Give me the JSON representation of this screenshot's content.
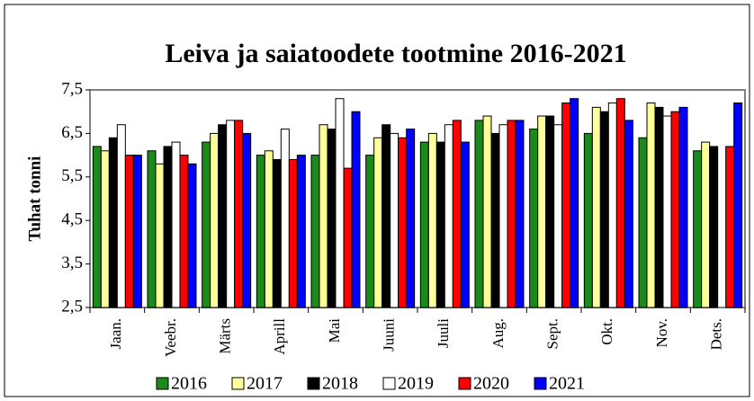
{
  "chart_data": {
    "type": "bar",
    "title": "Leiva ja saiatoodete tootmine 2016-2021",
    "y_label": "Tuhat tonni",
    "categories": [
      "Jaan.",
      "Veebr.",
      "Märts",
      "Aprill",
      "Mai",
      "Juuni",
      "Juuli",
      "Aug.",
      "Sept.",
      "Okt.",
      "Nov.",
      "Dets."
    ],
    "series": [
      {
        "name": "2016",
        "color": "#1a8a1a",
        "values": [
          6.2,
          6.1,
          6.3,
          6.0,
          6.0,
          6.0,
          6.3,
          6.8,
          6.6,
          6.5,
          6.4,
          6.1
        ]
      },
      {
        "name": "2017",
        "color": "#ffff99",
        "values": [
          6.1,
          5.8,
          6.5,
          6.1,
          6.7,
          6.4,
          6.5,
          6.9,
          6.9,
          7.1,
          7.2,
          6.3
        ]
      },
      {
        "name": "2018",
        "color": "#000000",
        "values": [
          6.4,
          6.2,
          6.7,
          5.9,
          6.6,
          6.7,
          6.3,
          6.5,
          6.9,
          7.0,
          7.1,
          6.2
        ]
      },
      {
        "name": "2019",
        "color": "#ffffff",
        "values": [
          6.7,
          6.3,
          6.8,
          6.6,
          7.3,
          6.5,
          6.7,
          6.7,
          6.7,
          7.2,
          6.9,
          null
        ]
      },
      {
        "name": "2020",
        "color": "#ff0000",
        "values": [
          6.0,
          6.0,
          6.8,
          5.9,
          5.7,
          6.4,
          6.8,
          6.8,
          7.2,
          7.3,
          7.0,
          6.2
        ]
      },
      {
        "name": "2021",
        "color": "#0000ff",
        "values": [
          6.0,
          5.8,
          6.5,
          6.0,
          7.0,
          6.6,
          6.3,
          6.8,
          7.3,
          6.8,
          7.1,
          7.2
        ]
      }
    ],
    "ylim": [
      2.5,
      7.5
    ],
    "yticks": [
      {
        "value": 2.5,
        "label": "2,5"
      },
      {
        "value": 3.5,
        "label": "3,5"
      },
      {
        "value": 4.5,
        "label": "4,5"
      },
      {
        "value": 5.5,
        "label": "5,5"
      },
      {
        "value": 6.5,
        "label": "6,5"
      },
      {
        "value": 7.5,
        "label": "7,5"
      }
    ],
    "legend": "bottom"
  }
}
